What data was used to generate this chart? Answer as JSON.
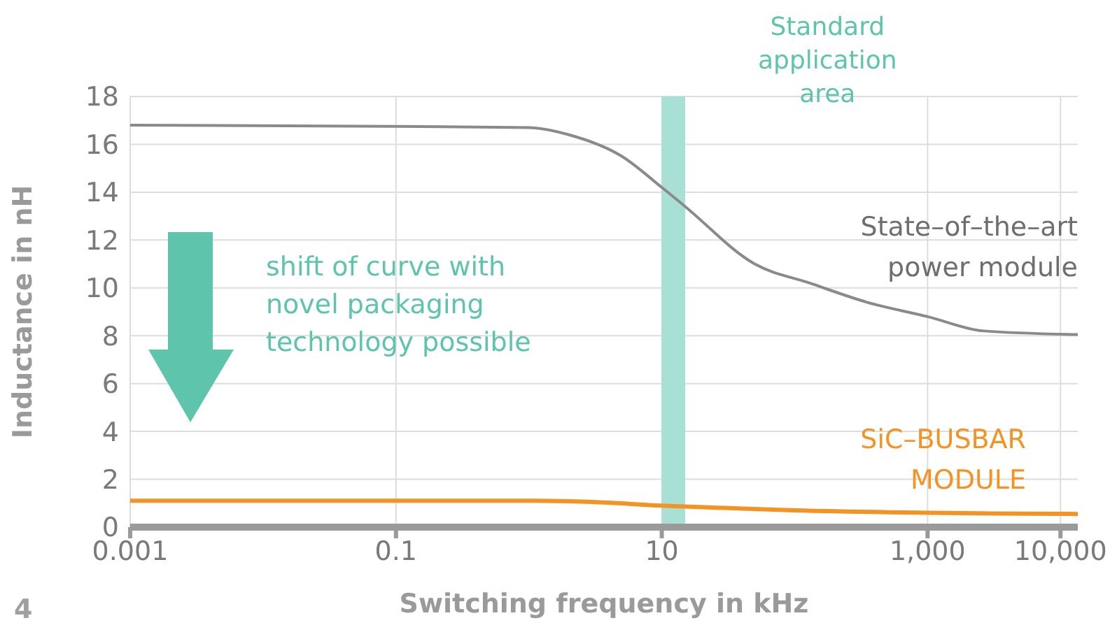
{
  "chart_data": {
    "type": "line",
    "xlabel": "Switching frequency in kHz",
    "ylabel": "Inductance in nH",
    "log": "x",
    "grid": true,
    "marker": "none",
    "line_style": "solid",
    "xlim": [
      0.001,
      13500
    ],
    "xticks": [
      0.001,
      0.1,
      10,
      {
        "value": 1000,
        "label": "1,000"
      },
      {
        "value": 10000,
        "label": "10,000"
      }
    ],
    "ylim": [
      0,
      18
    ],
    "yticks": [
      0,
      2,
      4,
      6,
      8,
      10,
      12,
      14,
      16,
      18
    ],
    "series": [
      {
        "name": "State–of–the–art power module",
        "color": "#8a8a8a",
        "x": [
          0.001,
          0.1,
          1,
          2,
          5,
          10,
          15,
          50,
          130,
          350,
          1000,
          2650,
          13500
        ],
        "values": [
          16.8,
          16.75,
          16.7,
          16.4,
          15.5,
          14.2,
          13.4,
          11,
          10.2,
          9.4,
          8.8,
          8.2,
          8.05
        ]
      },
      {
        "name": "SiC–BUSBAR MODULE",
        "color": "#f39324",
        "x": [
          0.001,
          0.1,
          1,
          3,
          10,
          30,
          100,
          1000,
          3160,
          13500
        ],
        "values": [
          1.1,
          1.1,
          1.1,
          1.05,
          0.9,
          0.8,
          0.7,
          0.6,
          0.57,
          0.55
        ]
      }
    ],
    "bands": [
      {
        "axis": "x",
        "from": 10,
        "to": 15,
        "label": "Standard application area",
        "color": "#a8e0d5"
      }
    ],
    "annotations": [
      "shift of curve with novel packaging technology possible",
      "4"
    ]
  }
}
